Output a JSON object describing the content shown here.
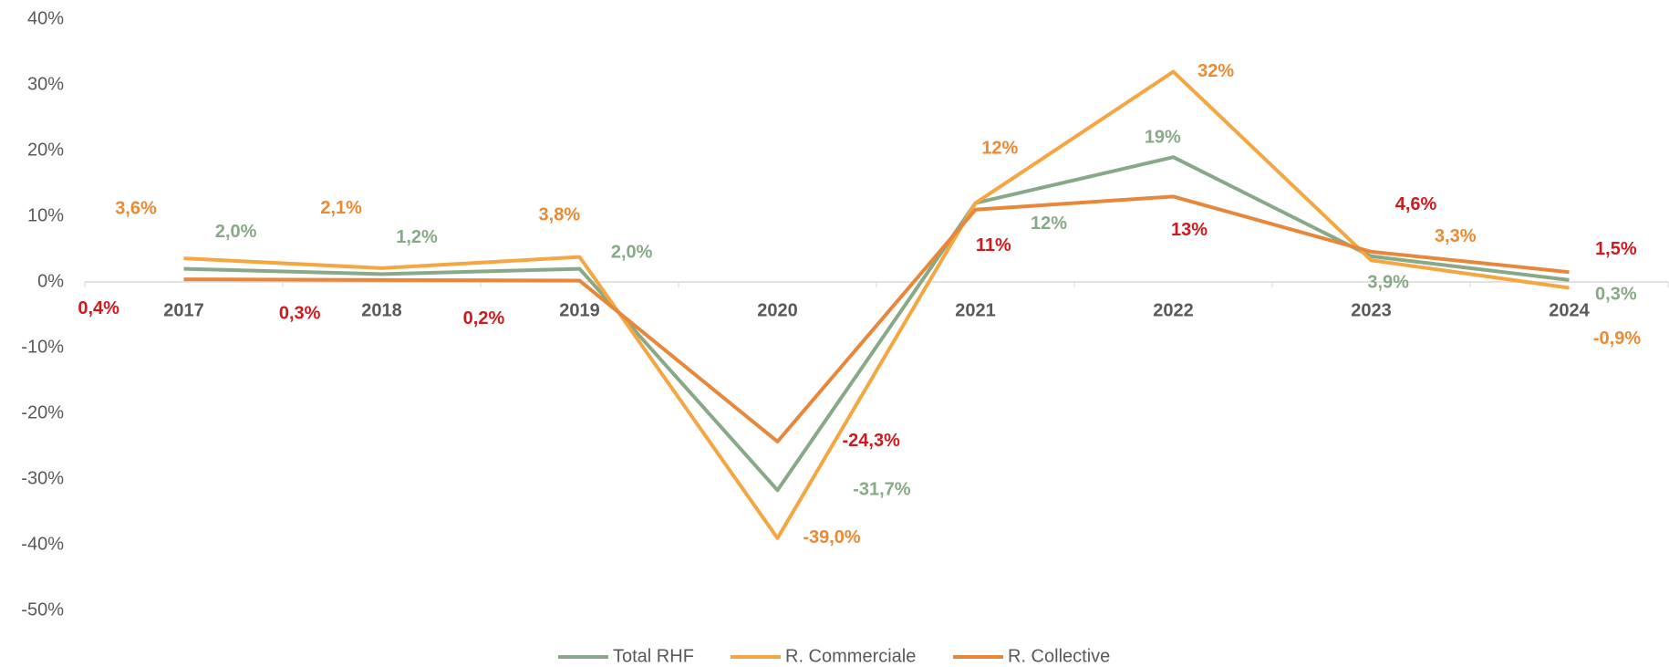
{
  "chart_data": {
    "type": "line",
    "categories": [
      "2017",
      "2018",
      "2019",
      "2020",
      "2021",
      "2022",
      "2023",
      "2024"
    ],
    "series": [
      {
        "name": "Total RHF",
        "color": "#87a987",
        "label_color": "#87a987",
        "values": [
          2.0,
          1.2,
          2.0,
          -31.7,
          12,
          19,
          3.9,
          0.3
        ],
        "value_labels": [
          "2,0%",
          "1,2%",
          "2,0%",
          "-31,7%",
          "12%",
          "19%",
          "3,9%",
          "0,3%"
        ]
      },
      {
        "name": "R. Commerciale",
        "color": "#f4a641",
        "label_color": "#ec8a34",
        "values": [
          3.6,
          2.1,
          3.8,
          -39.0,
          12,
          32,
          3.3,
          -0.9
        ],
        "value_labels": [
          "3,6%",
          "2,1%",
          "3,8%",
          "-39,0%",
          "12%",
          "32%",
          "3,3%",
          "-0,9%"
        ]
      },
      {
        "name": "R. Collective",
        "color": "#e8873a",
        "label_color": "#d0191c",
        "values": [
          0.4,
          0.3,
          0.2,
          -24.3,
          11,
          13,
          4.6,
          1.5
        ],
        "value_labels": [
          "0,4%",
          "0,3%",
          "0,2%",
          "-24,3%",
          "11%",
          "13%",
          "4,6%",
          "1,5%"
        ]
      }
    ],
    "ylim": [
      -50,
      40
    ],
    "yticks": [
      {
        "value": -50,
        "label": "-50%"
      },
      {
        "value": -40,
        "label": "-40%"
      },
      {
        "value": -30,
        "label": "-30%"
      },
      {
        "value": -20,
        "label": "-20%"
      },
      {
        "value": -10,
        "label": "-10%"
      },
      {
        "value": 0,
        "label": "0%"
      },
      {
        "value": 10,
        "label": "10%"
      },
      {
        "value": 20,
        "label": "20%"
      },
      {
        "value": 30,
        "label": "30%"
      },
      {
        "value": 40,
        "label": "40%"
      }
    ],
    "grid": false,
    "legend": "bottom"
  }
}
